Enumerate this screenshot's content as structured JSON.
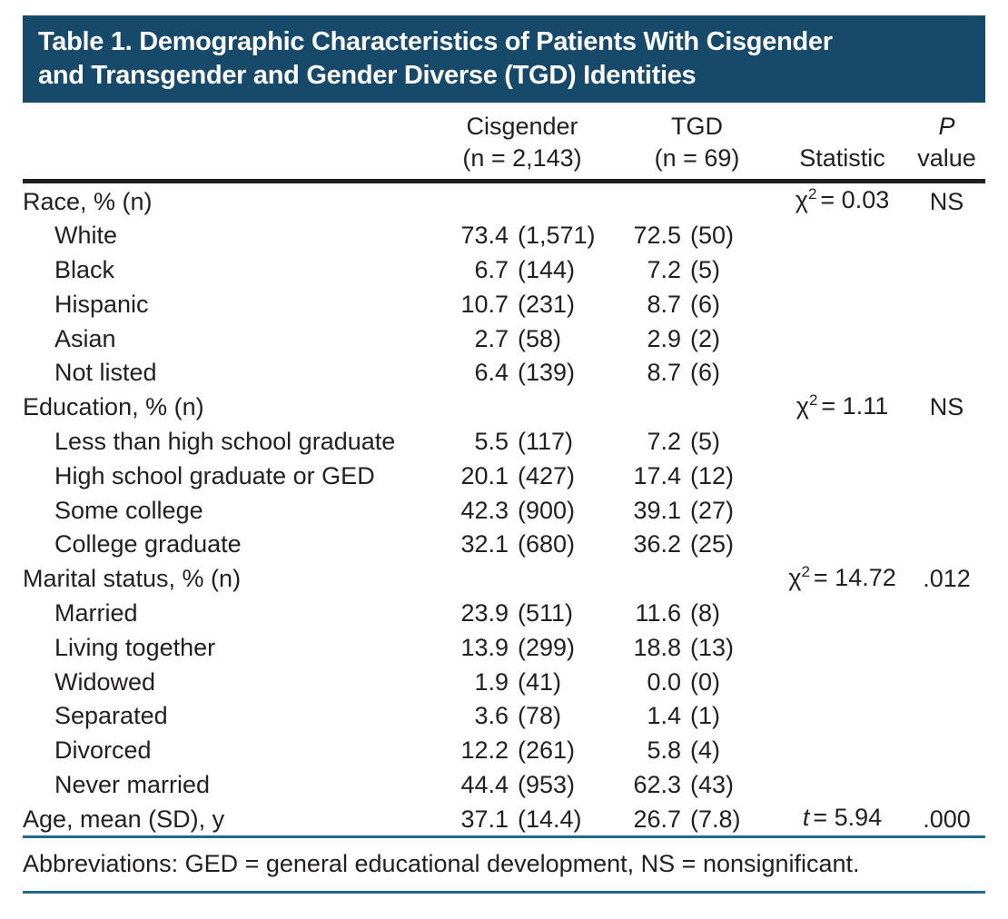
{
  "table": {
    "title_line1": "Table 1. Demographic Characteristics of Patients With Cisgender",
    "title_line2": "and Transgender and Gender Diverse (TGD) Identities",
    "header": {
      "cisgender_line1": "Cisgender",
      "cisgender_line2": "(n = 2,143)",
      "tgd_line1": "TGD",
      "tgd_line2": "(n = 69)",
      "statistic": "Statistic",
      "p_line1": "P",
      "p_line2": "value"
    },
    "rows": [
      {
        "label": "Race, % (n)",
        "indent": false,
        "stat_sym": "χ",
        "stat_sup": "2",
        "stat_val": "= 0.03",
        "stat_italic": false,
        "p": "NS"
      },
      {
        "label": "White",
        "indent": true,
        "cis_pct": "73.4",
        "cis_n": "(1,571)",
        "tgd_pct": "72.5",
        "tgd_n": "(50)"
      },
      {
        "label": "Black",
        "indent": true,
        "cis_pct": "6.7",
        "cis_n": "(144)",
        "tgd_pct": "7.2",
        "tgd_n": "(5)"
      },
      {
        "label": "Hispanic",
        "indent": true,
        "cis_pct": "10.7",
        "cis_n": "(231)",
        "tgd_pct": "8.7",
        "tgd_n": "(6)"
      },
      {
        "label": "Asian",
        "indent": true,
        "cis_pct": "2.7",
        "cis_n": "(58)",
        "tgd_pct": "2.9",
        "tgd_n": "(2)"
      },
      {
        "label": "Not listed",
        "indent": true,
        "cis_pct": "6.4",
        "cis_n": "(139)",
        "tgd_pct": "8.7",
        "tgd_n": "(6)"
      },
      {
        "label": "Education, % (n)",
        "indent": false,
        "stat_sym": "χ",
        "stat_sup": "2",
        "stat_val": "= 1.11",
        "stat_italic": false,
        "p": "NS"
      },
      {
        "label": "Less than high school graduate",
        "indent": true,
        "cis_pct": "5.5",
        "cis_n": "(117)",
        "tgd_pct": "7.2",
        "tgd_n": "(5)"
      },
      {
        "label": "High school graduate or GED",
        "indent": true,
        "cis_pct": "20.1",
        "cis_n": "(427)",
        "tgd_pct": "17.4",
        "tgd_n": "(12)"
      },
      {
        "label": "Some college",
        "indent": true,
        "cis_pct": "42.3",
        "cis_n": "(900)",
        "tgd_pct": "39.1",
        "tgd_n": "(27)"
      },
      {
        "label": "College graduate",
        "indent": true,
        "cis_pct": "32.1",
        "cis_n": "(680)",
        "tgd_pct": "36.2",
        "tgd_n": "(25)"
      },
      {
        "label": "Marital status, % (n)",
        "indent": false,
        "stat_sym": "χ",
        "stat_sup": "2",
        "stat_val": "= 14.72",
        "stat_italic": false,
        "p": ".012"
      },
      {
        "label": "Married",
        "indent": true,
        "cis_pct": "23.9",
        "cis_n": "(511)",
        "tgd_pct": "11.6",
        "tgd_n": "(8)"
      },
      {
        "label": "Living together",
        "indent": true,
        "cis_pct": "13.9",
        "cis_n": "(299)",
        "tgd_pct": "18.8",
        "tgd_n": "(13)"
      },
      {
        "label": "Widowed",
        "indent": true,
        "cis_pct": "1.9",
        "cis_n": "(41)",
        "tgd_pct": "0.0",
        "tgd_n": "(0)"
      },
      {
        "label": "Separated",
        "indent": true,
        "cis_pct": "3.6",
        "cis_n": "(78)",
        "tgd_pct": "1.4",
        "tgd_n": "(1)"
      },
      {
        "label": "Divorced",
        "indent": true,
        "cis_pct": "12.2",
        "cis_n": "(261)",
        "tgd_pct": "5.8",
        "tgd_n": "(4)"
      },
      {
        "label": "Never married",
        "indent": true,
        "cis_pct": "44.4",
        "cis_n": "(953)",
        "tgd_pct": "62.3",
        "tgd_n": "(43)"
      },
      {
        "label": "Age, mean (SD), y",
        "indent": false,
        "cis_pct": "37.1",
        "cis_n": "(14.4)",
        "tgd_pct": "26.7",
        "tgd_n": "(7.8)",
        "stat_sym": "t",
        "stat_sup": "",
        "stat_val": "= 5.94",
        "stat_italic": true,
        "p": ".000"
      }
    ],
    "footnote": "Abbreviations: GED = general educational development, NS = nonsignificant.",
    "colors": {
      "title_bg": "#17496b",
      "title_text": "#ffffff",
      "header_rule": "#1f1f1f",
      "footnote_rule": "#23698e",
      "body_text": "#231f20"
    }
  }
}
